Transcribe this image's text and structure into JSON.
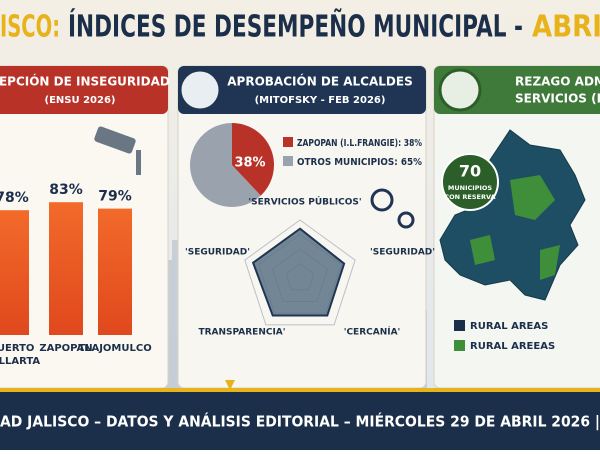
{
  "header": {
    "title_parts": [
      "ISCO:",
      "ÍNDICES DE DESEMPEÑO MUNICIPAL -",
      "ABRI"
    ]
  },
  "insecurity": {
    "title": "CEPCIÓN DE INSEGURIDAD",
    "subtitle": "(ENSU 2026)",
    "categories": [
      [
        "PUERTO",
        "VALLARTA"
      ],
      [
        "ZAPOPAN"
      ],
      [
        "TLAJOMULCO"
      ]
    ],
    "values": [
      78,
      83,
      79
    ],
    "value_labels": [
      "78%",
      "83%",
      "79%"
    ]
  },
  "approval": {
    "title": "APROBACIÓN DE ALCALDES",
    "subtitle": "(MITOFSKY - FEB 2026)",
    "legend": [
      "ZAPOPAN (I.L.FRANGIE): 38%",
      "OTROS MUNICIPIOS: 65%"
    ],
    "values": [
      38,
      65
    ],
    "value_labels": [
      "38%"
    ],
    "radar": {
      "axes": [
        "'SERVICIOS PÚBLICOS'",
        "'SEGURIDAD'",
        "'CERCANÍA'",
        "TRANSPARENCIA'",
        "'SEGURIDAD'"
      ],
      "values": [
        85,
        80,
        80,
        80,
        85
      ]
    }
  },
  "lag": {
    "title_lines": [
      "REZAGO ADMIN",
      "SERVICIOS (IIE"
    ],
    "badge": {
      "number": "70",
      "lines": [
        "MUNICIPIOS",
        "CON RESERVA"
      ]
    },
    "legend": [
      "RURAL AREAS",
      "RURAL AREEAS"
    ]
  },
  "footer": {
    "text": "AD JALISCO – DATOS Y ANÁLISIS EDITORIAL – MIÉRCOLES 29 DE ABRIL 2026 |"
  }
}
